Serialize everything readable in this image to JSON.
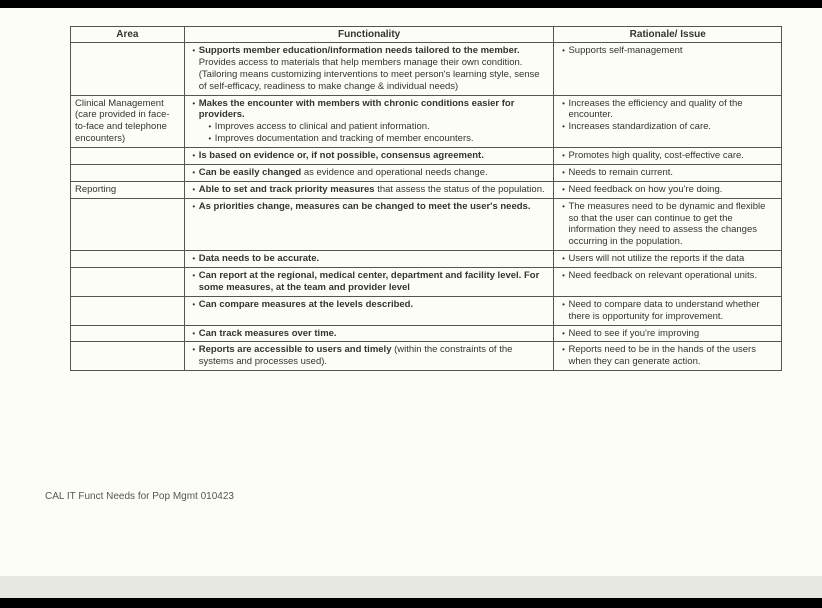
{
  "columns": {
    "area": "Area",
    "functionality": "Functionality",
    "rationale": "Rationale/ Issue"
  },
  "col_widths": {
    "area": "16%",
    "functionality": "52%",
    "rationale": "32%"
  },
  "rows": [
    {
      "area": "",
      "func_bold": "Supports member education/information needs tailored to the member.",
      "func_rest": "  Provides access to materials that help members manage their own condition. (Tailoring means customizing interventions to meet  person's learning style, sense of self-efficacy, readiness to make change  & individual needs)",
      "rat": [
        "Supports self-management"
      ]
    },
    {
      "area": "Clinical Management (care provided in face-to-face and telephone encounters)",
      "func_bold": "Makes the encounter with members with chronic conditions easier for providers.",
      "func_rest": "",
      "sub": [
        "Improves access to clinical and patient information.",
        "Improves documentation and tracking of member encounters."
      ],
      "rat": [
        "Increases the efficiency and quality of the encounter.",
        "Increases standardization of care."
      ]
    },
    {
      "area": "",
      "func_bold": "Is based on evidence or, if not possible, consensus agreement.",
      "func_rest": "",
      "rat": [
        "Promotes high quality, cost-effective care."
      ]
    },
    {
      "area": "",
      "func_bold": "Can be easily changed",
      "func_rest": " as evidence and operational needs change.",
      "rat": [
        "Needs to remain current."
      ]
    },
    {
      "area": "Reporting",
      "func_bold": "Able to set and track priority measures",
      "func_rest": " that assess the status of the population.",
      "rat": [
        "Need feedback on how you're doing."
      ]
    },
    {
      "area": "",
      "func_bold": "As priorities change, measures can be changed to meet the user's needs.",
      "func_rest": "",
      "rat": [
        "The measures need to be dynamic and flexible so that the user can continue to get the information they need to assess the changes occurring in the population."
      ]
    },
    {
      "area": "",
      "func_bold": "Data needs to be accurate.",
      "func_rest": "",
      "rat": [
        "Users will not utilize the reports if the data"
      ]
    },
    {
      "area": "",
      "func_bold": "Can report at the regional, medical center, department and facility level.  For some measures, at the team and provider level",
      "func_rest": "",
      "rat": [
        "Need feedback on relevant operational units."
      ]
    },
    {
      "area": "",
      "func_bold": "Can compare measures at the levels described.",
      "func_rest": "",
      "rat": [
        "Need to compare data to understand whether there is opportunity for improvement."
      ]
    },
    {
      "area": "",
      "func_bold": "Can track measures over time.",
      "func_rest": "",
      "rat": [
        "Need to see if you're improving"
      ]
    },
    {
      "area": "",
      "func_bold": "Reports are accessible to users and timely",
      "func_rest": " (within the constraints of the systems and processes used).",
      "rat": [
        "Reports need to be in the hands of the users when they can generate action."
      ]
    }
  ],
  "footer": "CAL IT Funct Needs for Pop Mgmt 010423"
}
